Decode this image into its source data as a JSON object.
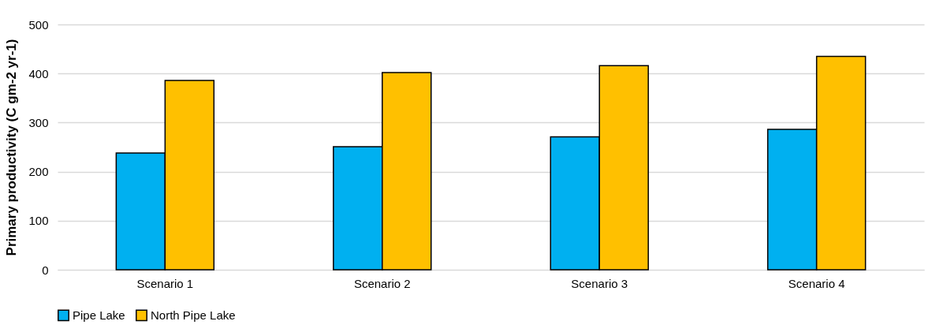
{
  "chart_data": {
    "type": "bar",
    "ylabel": "Primary productivity (C gm-2 yr-1)",
    "categories": [
      "Scenario 1",
      "Scenario 2",
      "Scenario 3",
      "Scenario 4"
    ],
    "series": [
      {
        "name": "Pipe Lake",
        "color": "#00b0f0",
        "values": [
          238,
          251,
          271,
          286
        ]
      },
      {
        "name": "North Pipe Lake",
        "color": "#ffc000",
        "values": [
          386,
          402,
          416,
          435
        ]
      }
    ],
    "ylim": [
      0,
      500
    ],
    "yticks": [
      0,
      100,
      200,
      300,
      400,
      500
    ],
    "grid": "y",
    "legend": "bottom"
  }
}
